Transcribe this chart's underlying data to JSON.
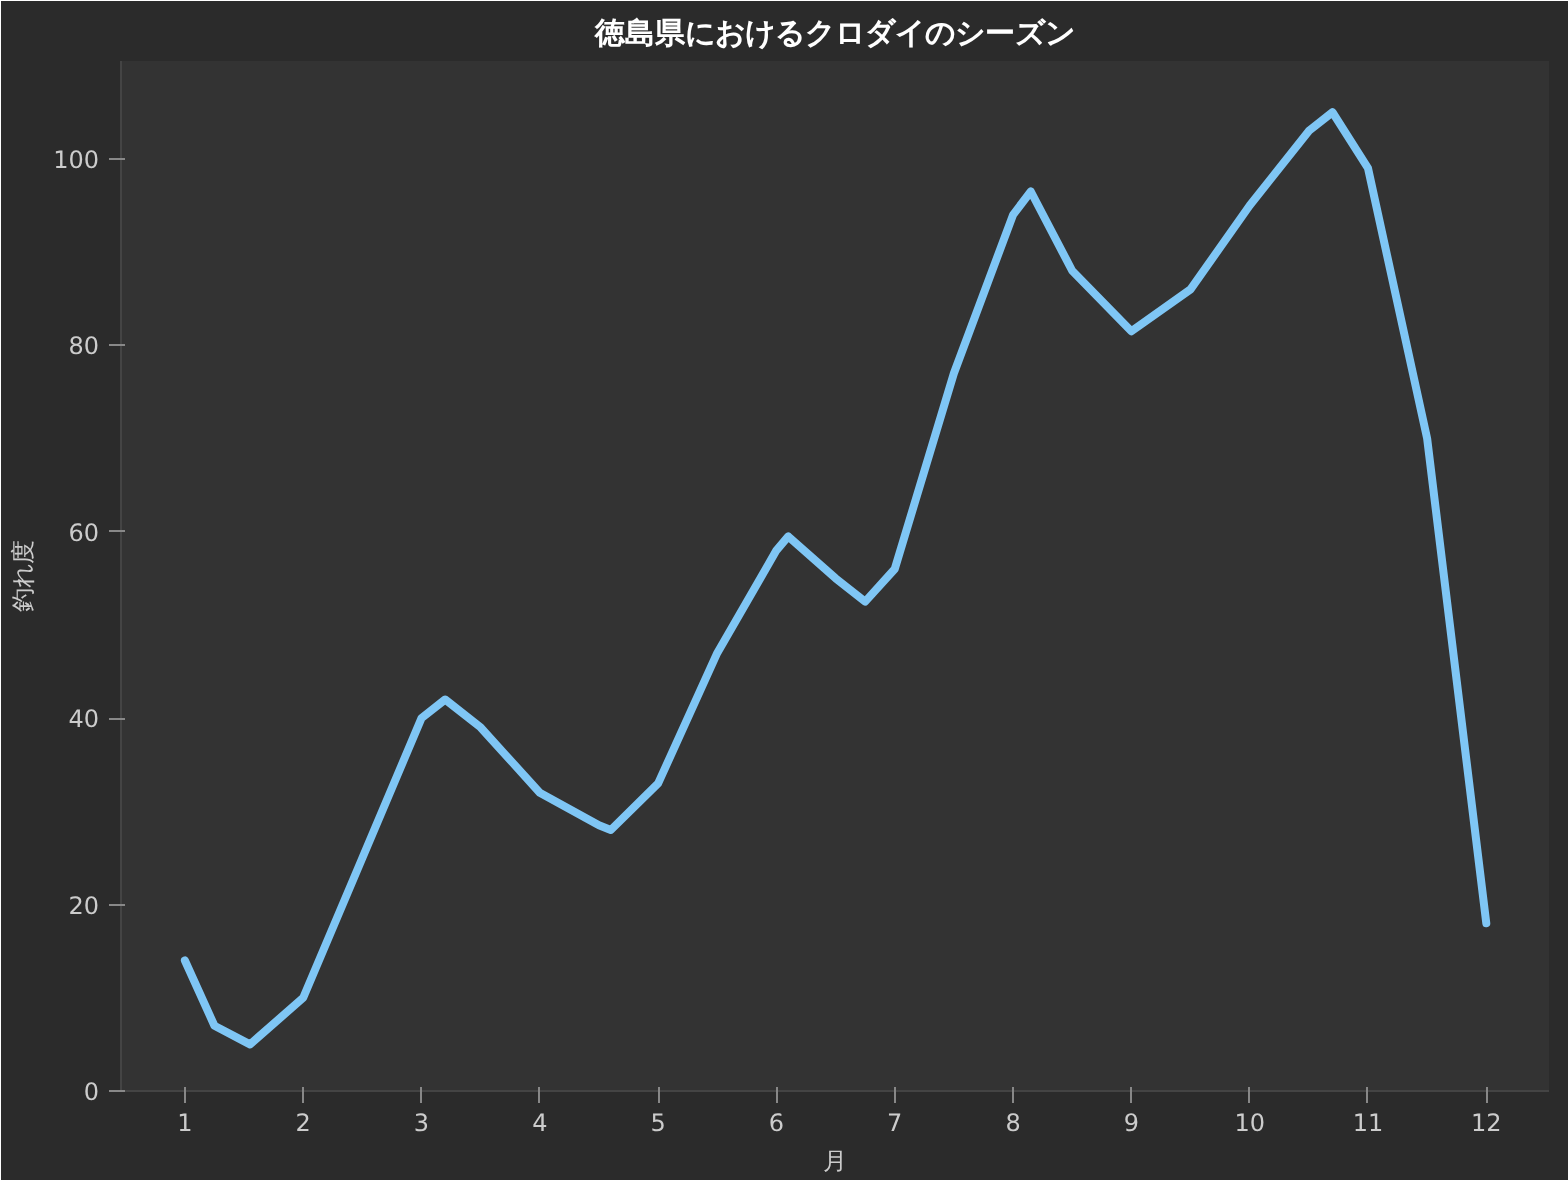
{
  "chart_data": {
    "type": "line",
    "title": "徳島県におけるクロダイのシーズン",
    "xlabel": "月",
    "ylabel": "釣れ度",
    "series": [
      {
        "color": "#7fc6f5",
        "x": [
          1,
          1.25,
          1.55,
          2,
          2.5,
          3,
          3.2,
          3.5,
          4,
          4.5,
          4.6,
          5,
          5.5,
          6,
          6.1,
          6.5,
          6.75,
          7,
          7.5,
          8,
          8.15,
          8.5,
          9,
          9.5,
          10,
          10.5,
          10.7,
          11,
          11.5,
          12
        ],
        "values": [
          14,
          7,
          5,
          10,
          25,
          40,
          42,
          39,
          32,
          28.5,
          28,
          33,
          47,
          58,
          59.5,
          55,
          52.5,
          56,
          77,
          94,
          96.5,
          88,
          81.5,
          86,
          95,
          103,
          105,
          99,
          70,
          18
        ]
      }
    ],
    "xlim": [
      0.46,
      12.53
    ],
    "ylim": [
      0,
      110.5
    ],
    "xticks": [
      1,
      2,
      3,
      4,
      5,
      6,
      7,
      8,
      9,
      10,
      11,
      12
    ],
    "yticks": [
      0,
      20,
      40,
      60,
      80,
      100
    ],
    "line_style": "solid"
  }
}
